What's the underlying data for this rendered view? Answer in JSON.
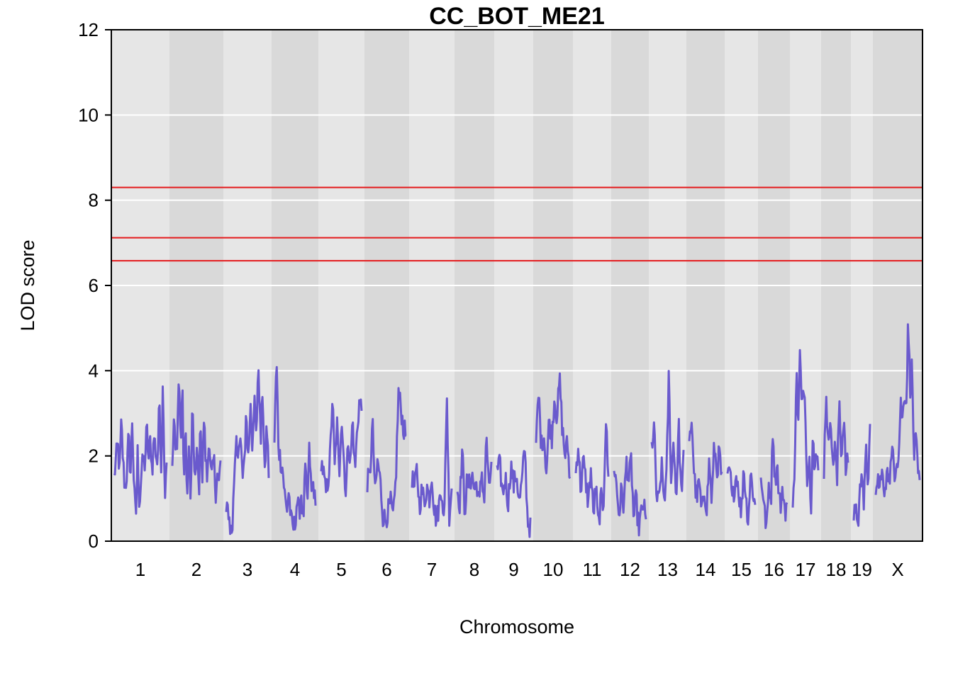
{
  "chart_data": {
    "type": "line",
    "title": "CC_BOT_ME21",
    "xlabel": "Chromosome",
    "ylabel": "LOD score",
    "ylim": [
      0,
      12
    ],
    "yticks": [
      0,
      2,
      4,
      6,
      8,
      10,
      12
    ],
    "grid": true,
    "line_color": "#6A5ACD",
    "threshold_color": "#E41A1C",
    "band_colors": [
      "#E6E6E6",
      "#D9D9D9"
    ],
    "thresholds": [
      8.3,
      7.12,
      6.58
    ],
    "chromosomes": [
      {
        "name": "1",
        "profile": [
          1.5,
          1.9,
          2.3,
          1.6,
          2.8,
          1.8,
          1.2,
          1.6,
          2.5,
          1.5,
          2.9,
          1.2,
          0.5,
          2.1,
          0.8,
          1.6,
          1.9,
          1.8,
          2.7,
          1.9,
          2.4,
          1.6,
          2.5,
          2.1,
          1.8,
          3.4,
          1.7,
          3.9,
          1.0,
          2.0
        ]
      },
      {
        "name": "2",
        "profile": [
          1.6,
          2.9,
          2.0,
          2.5,
          4.0,
          2.2,
          3.7,
          1.4,
          2.6,
          1.0,
          2.3,
          0.8,
          3.1,
          2.0,
          1.4,
          2.2,
          1.0,
          3.0,
          1.3,
          2.9,
          2.0,
          1.4,
          2.6,
          1.6,
          1.5,
          2.0,
          1.1,
          1.6,
          1.3,
          1.9
        ]
      },
      {
        "name": "3",
        "profile": [
          0.6,
          0.8,
          0.3,
          0.2,
          1.6,
          2.6,
          1.8,
          2.4,
          1.5,
          2.0,
          3.0,
          1.9,
          3.5,
          2.1,
          3.3,
          2.6,
          4.2,
          2.2,
          3.7,
          1.4,
          2.8,
          1.6
        ]
      },
      {
        "name": "4",
        "profile": [
          2.3,
          4.3,
          2.2,
          1.9,
          1.7,
          1.1,
          0.7,
          1.2,
          0.5,
          0.3,
          0.4,
          1.0,
          0.6,
          1.2,
          0.4,
          1.7,
          0.8,
          2.2,
          1.1,
          1.4,
          0.7
        ]
      },
      {
        "name": "5",
        "profile": [
          1.9,
          1.6,
          1.1,
          1.4,
          2.0,
          3.4,
          1.7,
          2.8,
          1.5,
          3.0,
          2.0,
          1.1,
          2.4,
          1.8,
          2.9,
          1.6,
          2.6,
          3.3,
          3.1
        ]
      },
      {
        "name": "6",
        "profile": [
          1.4,
          1.5,
          2.8,
          1.1,
          1.9,
          1.4,
          0.6,
          0.5,
          0.7,
          0.9,
          0.5,
          1.5,
          3.5,
          3.1,
          2.6,
          2.5
        ]
      },
      {
        "name": "7",
        "profile": [
          1.5,
          1.2,
          1.7,
          0.8,
          1.2,
          0.9,
          1.3,
          1.0,
          1.6,
          0.7,
          0.5,
          0.9,
          1.3,
          0.3,
          3.6,
          0.6,
          1.3
        ]
      },
      {
        "name": "8",
        "profile": [
          1.2,
          0.9,
          2.2,
          0.7,
          1.4,
          1.3,
          1.6,
          1.2,
          1.4,
          0.8,
          1.7,
          0.9,
          2.5,
          1.1,
          1.9
        ]
      },
      {
        "name": "9",
        "profile": [
          1.6,
          1.8,
          1.1,
          1.5,
          0.9,
          1.8,
          1.3,
          1.6,
          0.9,
          1.4,
          2.2,
          0.5,
          0.3
        ]
      },
      {
        "name": "10",
        "profile": [
          2.3,
          3.5,
          2.2,
          2.5,
          1.6,
          2.9,
          2.4,
          3.4,
          2.9,
          3.8,
          2.7,
          2.0,
          2.3,
          1.4
        ]
      },
      {
        "name": "11",
        "profile": [
          1.6,
          2.3,
          1.2,
          1.9,
          1.4,
          0.9,
          1.7,
          0.6,
          1.3,
          0.3,
          1.0,
          0.8,
          2.9,
          1.4
        ]
      },
      {
        "name": "12",
        "profile": [
          1.8,
          1.3,
          0.6,
          1.2,
          0.8,
          1.9,
          1.4,
          1.9,
          0.5,
          1.0,
          0.3,
          0.6,
          0.9,
          0.4
        ]
      },
      {
        "name": "13",
        "profile": [
          2.2,
          2.7,
          1.0,
          0.9,
          1.8,
          1.0,
          1.4,
          3.9,
          1.3,
          2.5,
          0.9,
          2.8,
          1.1,
          1.9
        ]
      },
      {
        "name": "14",
        "profile": [
          2.2,
          2.9,
          1.5,
          1.0,
          1.4,
          0.6,
          1.2,
          0.8,
          1.9,
          0.9,
          2.3,
          1.6,
          2.1,
          1.4
        ]
      },
      {
        "name": "15",
        "profile": [
          1.4,
          1.7,
          0.9,
          1.3,
          1.6,
          1.1,
          0.6,
          1.8,
          1.0,
          0.5,
          1.6,
          1.2,
          0.8
        ]
      },
      {
        "name": "16",
        "profile": [
          1.5,
          1.2,
          0.6,
          0.3,
          1.4,
          0.9,
          2.8,
          1.3,
          1.9,
          1.1,
          0.8,
          1.2,
          0.7,
          0.9
        ]
      },
      {
        "name": "17",
        "profile": [
          0.6,
          1.8,
          4.0,
          2.7,
          4.5,
          2.9,
          3.8,
          3.0,
          1.3,
          2.1,
          0.8,
          2.7,
          1.5,
          2.0,
          1.8
        ]
      },
      {
        "name": "18",
        "profile": [
          1.7,
          3.6,
          2.0,
          3.2,
          1.6,
          2.4,
          1.3,
          3.4,
          1.9,
          3.0,
          1.6,
          1.9
        ]
      },
      {
        "name": "19",
        "profile": [
          0.6,
          0.9,
          0.3,
          1.1,
          1.9,
          0.8,
          2.1,
          1.4,
          2.5
        ]
      },
      {
        "name": "X",
        "profile": [
          0.9,
          1.6,
          1.1,
          1.8,
          1.2,
          1.0,
          2.0,
          1.4,
          1.8,
          2.1,
          1.6,
          2.0,
          1.9,
          3.3,
          2.8,
          3.6,
          3.2,
          5.2,
          3.6,
          4.1,
          2.0,
          2.4,
          1.6,
          1.3
        ]
      }
    ]
  }
}
